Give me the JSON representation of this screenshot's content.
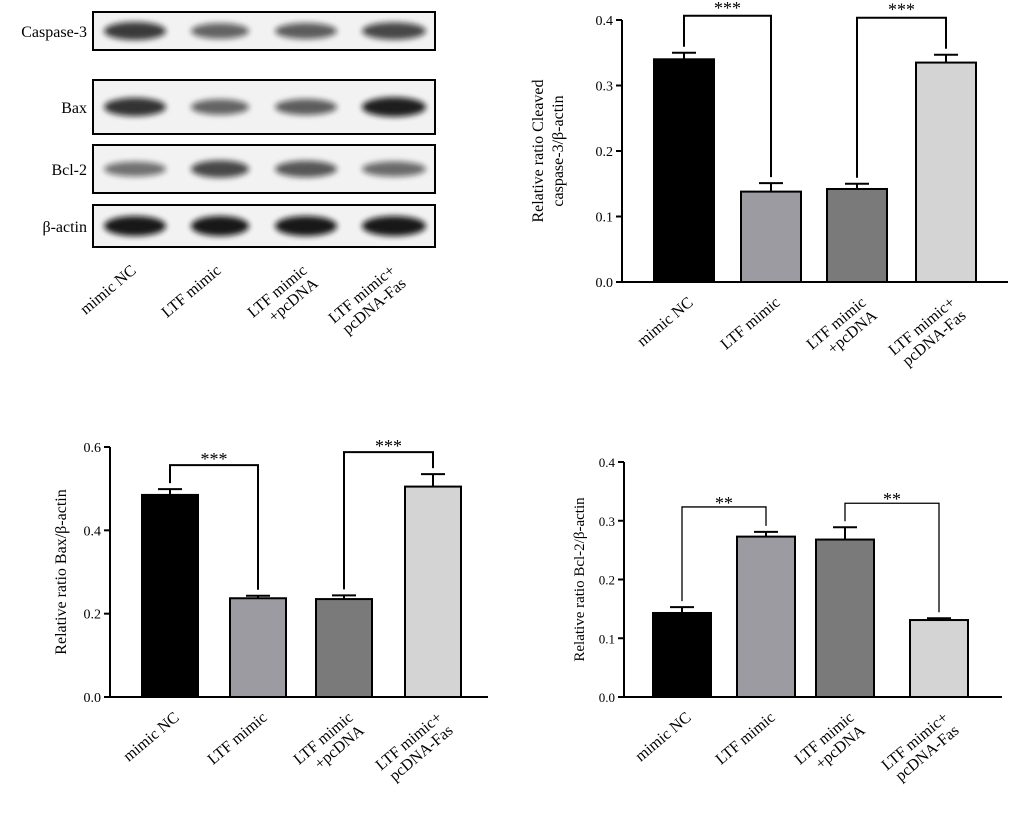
{
  "western_blot": {
    "rows": [
      {
        "label": "Caspase-3",
        "bands": [
          0.75,
          0.45,
          0.5,
          0.65
        ]
      },
      {
        "label": "Bax",
        "bands": [
          0.8,
          0.45,
          0.5,
          0.95
        ]
      },
      {
        "label": "Bcl-2",
        "bands": [
          0.35,
          0.65,
          0.55,
          0.4
        ]
      },
      {
        "label": "β-actin",
        "bands": [
          1.0,
          1.0,
          1.0,
          1.0
        ]
      }
    ],
    "lanes": [
      "mimic NC",
      "LTF mimic",
      "LTF mimic\n+pcDNA",
      "LTF mimic+\npcDNA-Fas"
    ]
  },
  "chart_data": [
    {
      "type": "bar",
      "title": "",
      "xlabel": "",
      "ylabel": "Relative ratio Cleaved\ncaspase-3/β-actin",
      "categories": [
        "mimic NC",
        "LTF mimic",
        "LTF mimic\n+pcDNA",
        "LTF mimic+\npcDNA-Fas"
      ],
      "values": [
        0.34,
        0.138,
        0.142,
        0.335
      ],
      "errors": [
        0.01,
        0.013,
        0.008,
        0.012
      ],
      "colors": [
        "#000000",
        "#9b9ba1",
        "#7a7a7a",
        "#d4d4d4"
      ],
      "ylim": [
        0,
        0.4
      ],
      "yticks": [
        "0.0",
        "0.1",
        "0.2",
        "0.3",
        "0.4"
      ],
      "significance": [
        {
          "from": 0,
          "to": 1,
          "label": "***"
        },
        {
          "from": 2,
          "to": 3,
          "label": "***"
        }
      ]
    },
    {
      "type": "bar",
      "title": "",
      "xlabel": "",
      "ylabel": "Relative ratio Bax/β-actin",
      "categories": [
        "mimic NC",
        "LTF mimic",
        "LTF mimic\n+pcDNA",
        "LTF mimic+\npcDNA-Fas"
      ],
      "values": [
        0.485,
        0.237,
        0.235,
        0.505
      ],
      "errors": [
        0.014,
        0.006,
        0.009,
        0.03
      ],
      "colors": [
        "#000000",
        "#9b9ba1",
        "#7a7a7a",
        "#d4d4d4"
      ],
      "ylim": [
        0,
        0.6
      ],
      "yticks": [
        "0.0",
        "0.2",
        "0.4",
        "0.6"
      ],
      "significance": [
        {
          "from": 0,
          "to": 1,
          "label": "***"
        },
        {
          "from": 2,
          "to": 3,
          "label": "***"
        }
      ]
    },
    {
      "type": "bar",
      "title": "",
      "xlabel": "",
      "ylabel": "Relative ratio Bcl-2/β-actin",
      "categories": [
        "mimic NC",
        "LTF mimic",
        "LTF mimic\n+pcDNA",
        "LTF mimic+\npcDNA-Fas"
      ],
      "values": [
        0.143,
        0.273,
        0.268,
        0.131
      ],
      "errors": [
        0.01,
        0.008,
        0.021,
        0.003
      ],
      "colors": [
        "#000000",
        "#9b9ba1",
        "#7a7a7a",
        "#d4d4d4"
      ],
      "ylim": [
        0,
        0.4
      ],
      "yticks": [
        "0.0",
        "0.1",
        "0.2",
        "0.3",
        "0.4"
      ],
      "significance": [
        {
          "from": 0,
          "to": 1,
          "label": "**"
        },
        {
          "from": 2,
          "to": 3,
          "label": "**"
        }
      ]
    }
  ]
}
